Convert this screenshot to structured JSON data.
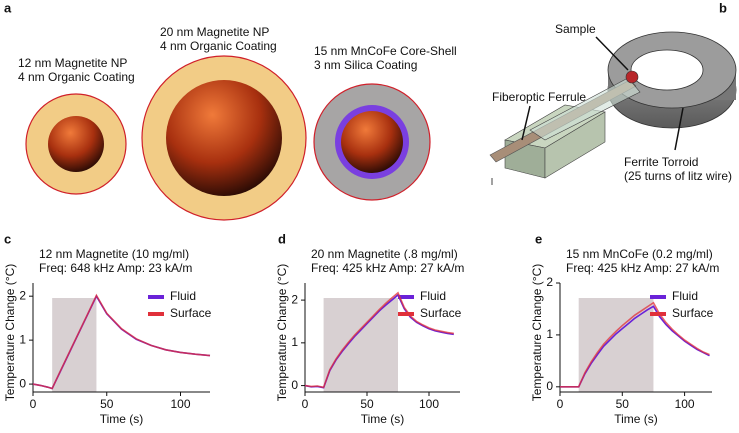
{
  "panel_a": {
    "label": "a",
    "particles": [
      {
        "line1": "12 nm Magnetite NP",
        "line2": "4 nm Organic Coating"
      },
      {
        "line1": "20 nm Magnetite NP",
        "line2": "4 nm Organic Coating"
      },
      {
        "line1": "15 nm MnCoFe Core-Shell",
        "line2": "3 nm Silica Coating"
      }
    ]
  },
  "panel_b": {
    "label": "b",
    "sample": "Sample",
    "ferrule": "Fiberoptic Ferrule",
    "toroid_line1": "Ferrite Torroid",
    "toroid_line2": "(25 turns of litz wire)"
  },
  "chart_data": [
    {
      "type": "line",
      "label": "c",
      "title": "12 nm Magnetite (10 mg/ml)",
      "subtitle": "Freq: 648 kHz Amp: 23 kA/m",
      "y_label": "Temperature Change (°C)",
      "x_label": "Time (s)",
      "xlim": [
        0,
        120
      ],
      "xticks": [
        0,
        50,
        100
      ],
      "ylim": [
        -0.18,
        2.3
      ],
      "yticks": [
        0,
        1,
        2
      ],
      "shade": [
        13,
        43
      ],
      "x": [
        0,
        5,
        10,
        13,
        18,
        23,
        28,
        33,
        38,
        43,
        50,
        60,
        70,
        80,
        90,
        100,
        110,
        120
      ],
      "series": [
        {
          "name": "Fluid",
          "color": "#6a22d8",
          "values": [
            0,
            -0.03,
            -0.07,
            -0.1,
            0.25,
            0.6,
            0.95,
            1.3,
            1.65,
            2.0,
            1.6,
            1.25,
            1.02,
            0.88,
            0.78,
            0.72,
            0.68,
            0.65
          ]
        },
        {
          "name": "Surface",
          "color": "#e0303a",
          "values": [
            0,
            -0.03,
            -0.07,
            -0.1,
            0.26,
            0.61,
            0.96,
            1.31,
            1.66,
            2.02,
            1.61,
            1.26,
            1.03,
            0.88,
            0.78,
            0.72,
            0.68,
            0.65
          ]
        }
      ]
    },
    {
      "type": "line",
      "label": "d",
      "title": "20 nm Magnetite (.8 mg/ml)",
      "subtitle": "Freq: 425 kHz Amp: 27 kA/m",
      "y_label": "Temperature Change (°C)",
      "x_label": "Time (s)",
      "xlim": [
        0,
        125
      ],
      "xticks": [
        0,
        50,
        100
      ],
      "ylim": [
        -0.15,
        2.4
      ],
      "yticks": [
        0,
        1,
        2
      ],
      "shade": [
        15,
        75
      ],
      "x": [
        0,
        5,
        10,
        15,
        20,
        25,
        30,
        35,
        40,
        45,
        50,
        55,
        60,
        65,
        70,
        75,
        80,
        85,
        90,
        95,
        100,
        105,
        110,
        115,
        120
      ],
      "series": [
        {
          "name": "Fluid",
          "color": "#6a22d8",
          "values": [
            0,
            -0.03,
            -0.02,
            -0.05,
            0.35,
            0.6,
            0.8,
            0.98,
            1.15,
            1.3,
            1.45,
            1.6,
            1.75,
            1.88,
            2.0,
            2.12,
            1.8,
            1.6,
            1.48,
            1.4,
            1.33,
            1.28,
            1.25,
            1.22,
            1.2
          ]
        },
        {
          "name": "Surface",
          "color": "#e0303a",
          "values": [
            0,
            -0.02,
            -0.01,
            -0.04,
            0.37,
            0.62,
            0.83,
            1.01,
            1.18,
            1.33,
            1.48,
            1.63,
            1.78,
            1.92,
            2.05,
            2.17,
            1.83,
            1.63,
            1.5,
            1.42,
            1.35,
            1.3,
            1.27,
            1.24,
            1.22
          ]
        }
      ]
    },
    {
      "type": "line",
      "label": "e",
      "title": "15 nm MnCoFe (0.2 mg/ml)",
      "subtitle": "Freq: 425 kHz Amp: 27 kA/m",
      "y_label": "Temperature Change (°C)",
      "x_label": "Time (s)",
      "xlim": [
        0,
        122
      ],
      "xticks": [
        0,
        50,
        100
      ],
      "ylim": [
        -0.1,
        2.0
      ],
      "yticks": [
        0,
        1,
        2
      ],
      "shade": [
        15,
        75
      ],
      "x": [
        0,
        5,
        10,
        15,
        20,
        25,
        30,
        35,
        40,
        45,
        50,
        55,
        60,
        65,
        70,
        75,
        80,
        85,
        90,
        95,
        100,
        105,
        110,
        115,
        120
      ],
      "series": [
        {
          "name": "Fluid",
          "color": "#6a22d8",
          "values": [
            0,
            0,
            0,
            0,
            0.25,
            0.45,
            0.62,
            0.78,
            0.9,
            1.02,
            1.12,
            1.22,
            1.32,
            1.4,
            1.48,
            1.55,
            1.35,
            1.2,
            1.08,
            0.98,
            0.88,
            0.8,
            0.72,
            0.66,
            0.6
          ]
        },
        {
          "name": "Surface",
          "color": "#e0303a",
          "values": [
            0,
            0,
            0,
            0,
            0.27,
            0.48,
            0.66,
            0.82,
            0.95,
            1.07,
            1.18,
            1.28,
            1.38,
            1.46,
            1.54,
            1.62,
            1.4,
            1.24,
            1.11,
            1.0,
            0.9,
            0.82,
            0.74,
            0.67,
            0.62
          ]
        }
      ]
    }
  ]
}
